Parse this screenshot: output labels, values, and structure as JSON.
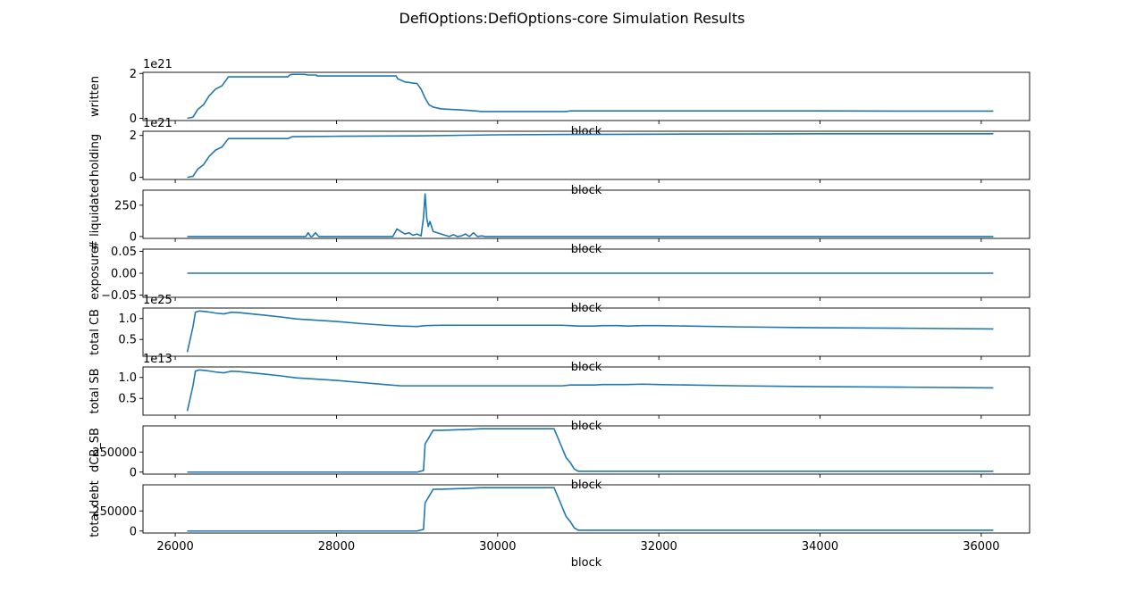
{
  "figure": {
    "title": "DefiOptions:DefiOptions-core Simulation Results"
  },
  "colors": {
    "line": "#1f77b4",
    "axes": "#000000",
    "background": "#ffffff"
  },
  "chart_data": [
    {
      "type": "line",
      "title": "",
      "xlabel": "block",
      "ylabel": "written",
      "offset_text": "1e21",
      "xlim": [
        25600,
        36600
      ],
      "ylim": [
        -0.1,
        2.05
      ],
      "yticks": [
        {
          "v": 0,
          "label": "0"
        },
        {
          "v": 2,
          "label": "2"
        }
      ],
      "series": [
        {
          "x": [
            26150,
            26220,
            26280,
            26350,
            26420,
            26500,
            26580,
            26640,
            26660,
            26700,
            27400,
            27420,
            27450,
            27600,
            27650,
            27750,
            27760,
            28500,
            28600,
            28740,
            28760,
            28800,
            28850,
            28900,
            28950,
            29000,
            29050,
            29100,
            29150,
            29200,
            29300,
            29400,
            29600,
            29750,
            29800,
            30000,
            30300,
            30850,
            30900,
            31500,
            32500,
            34000,
            35000,
            36150
          ],
          "y": [
            0.0,
            0.05,
            0.4,
            0.6,
            1.0,
            1.3,
            1.45,
            1.75,
            1.85,
            1.85,
            1.85,
            1.93,
            1.96,
            1.96,
            1.93,
            1.93,
            1.89,
            1.89,
            1.89,
            1.89,
            1.76,
            1.7,
            1.62,
            1.6,
            1.57,
            1.55,
            1.3,
            0.9,
            0.6,
            0.5,
            0.42,
            0.4,
            0.36,
            0.32,
            0.3,
            0.3,
            0.3,
            0.3,
            0.33,
            0.33,
            0.33,
            0.33,
            0.32,
            0.32
          ]
        }
      ]
    },
    {
      "type": "line",
      "title": "",
      "xlabel": "block",
      "ylabel": "holding",
      "offset_text": "1e21",
      "xlim": [
        25600,
        36600
      ],
      "ylim": [
        -0.1,
        2.2
      ],
      "yticks": [
        {
          "v": 0,
          "label": "0"
        },
        {
          "v": 2,
          "label": "2"
        }
      ],
      "series": [
        {
          "x": [
            26150,
            26220,
            26280,
            26350,
            26420,
            26500,
            26580,
            26640,
            26660,
            26700,
            27400,
            27450,
            28000,
            29000,
            30000,
            31000,
            32000,
            33000,
            34000,
            35000,
            36150
          ],
          "y": [
            0.0,
            0.05,
            0.4,
            0.6,
            1.0,
            1.3,
            1.45,
            1.75,
            1.85,
            1.85,
            1.85,
            1.94,
            1.96,
            1.98,
            2.03,
            2.05,
            2.06,
            2.07,
            2.08,
            2.08,
            2.08
          ]
        }
      ]
    },
    {
      "type": "line",
      "title": "",
      "xlabel": "block",
      "ylabel": "# liquidated",
      "offset_text": "",
      "xlim": [
        25600,
        36600
      ],
      "ylim": [
        -15,
        370
      ],
      "yticks": [
        {
          "v": 0,
          "label": "0"
        },
        {
          "v": 250,
          "label": "250"
        }
      ],
      "series": [
        {
          "x": [
            26150,
            27620,
            27650,
            27680,
            27700,
            27740,
            27780,
            27800,
            28700,
            28750,
            28800,
            28850,
            28900,
            28950,
            29000,
            29050,
            29080,
            29100,
            29120,
            29140,
            29160,
            29180,
            29200,
            29300,
            29400,
            29450,
            29500,
            29550,
            29600,
            29650,
            29700,
            29750,
            29800,
            29850,
            29900,
            30000,
            36150
          ],
          "y": [
            0,
            0,
            30,
            0,
            0,
            30,
            0,
            0,
            0,
            60,
            40,
            20,
            30,
            10,
            20,
            5,
            150,
            340,
            150,
            80,
            120,
            80,
            40,
            20,
            0,
            15,
            0,
            5,
            20,
            0,
            30,
            0,
            5,
            0,
            0,
            0,
            0
          ]
        }
      ]
    },
    {
      "type": "line",
      "title": "",
      "xlabel": "block",
      "ylabel": "exposure",
      "offset_text": "",
      "xlim": [
        25600,
        36600
      ],
      "ylim": [
        -0.055,
        0.055
      ],
      "yticks": [
        {
          "v": -0.05,
          "label": "−0.05"
        },
        {
          "v": 0,
          "label": "0.00"
        },
        {
          "v": 0.05,
          "label": "0.05"
        }
      ],
      "series": [
        {
          "x": [
            26150,
            36150
          ],
          "y": [
            0,
            0
          ]
        }
      ]
    },
    {
      "type": "line",
      "title": "",
      "xlabel": "block",
      "ylabel": "total CB",
      "offset_text": "1e25",
      "xlim": [
        25600,
        36600
      ],
      "ylim": [
        0.1,
        1.25
      ],
      "yticks": [
        {
          "v": 0.5,
          "label": "0.5"
        },
        {
          "v": 1.0,
          "label": "1.0"
        }
      ],
      "series": [
        {
          "x": [
            26150,
            26220,
            26250,
            26300,
            26400,
            26500,
            26600,
            26700,
            26800,
            27000,
            27100,
            27300,
            27500,
            28000,
            28300,
            28600,
            28800,
            29000,
            29100,
            29300,
            30000,
            30800,
            30900,
            31000,
            31200,
            31300,
            31500,
            31600,
            31800,
            32000,
            33000,
            34000,
            35000,
            36150
          ],
          "y": [
            0.2,
            0.8,
            1.15,
            1.18,
            1.16,
            1.13,
            1.11,
            1.15,
            1.14,
            1.1,
            1.08,
            1.04,
            0.99,
            0.93,
            0.88,
            0.84,
            0.82,
            0.81,
            0.83,
            0.84,
            0.84,
            0.84,
            0.83,
            0.82,
            0.82,
            0.83,
            0.83,
            0.82,
            0.83,
            0.83,
            0.8,
            0.78,
            0.77,
            0.75
          ]
        }
      ]
    },
    {
      "type": "line",
      "title": "",
      "xlabel": "block",
      "ylabel": "total SB",
      "offset_text": "1e13",
      "xlim": [
        25600,
        36600
      ],
      "ylim": [
        0.1,
        1.25
      ],
      "yticks": [
        {
          "v": 0.5,
          "label": "0.5"
        },
        {
          "v": 1.0,
          "label": "1.0"
        }
      ],
      "series": [
        {
          "x": [
            26150,
            26220,
            26250,
            26300,
            26400,
            26500,
            26600,
            26700,
            26800,
            27000,
            27100,
            27300,
            27500,
            28000,
            28300,
            28600,
            28800,
            29000,
            29100,
            29300,
            30000,
            30800,
            30900,
            31000,
            31200,
            31300,
            31500,
            31600,
            31800,
            32000,
            33000,
            34000,
            35000,
            36150
          ],
          "y": [
            0.2,
            0.8,
            1.15,
            1.18,
            1.16,
            1.13,
            1.11,
            1.15,
            1.14,
            1.1,
            1.08,
            1.04,
            0.99,
            0.93,
            0.88,
            0.83,
            0.8,
            0.8,
            0.8,
            0.8,
            0.8,
            0.8,
            0.82,
            0.82,
            0.82,
            0.83,
            0.83,
            0.83,
            0.84,
            0.83,
            0.8,
            0.78,
            0.77,
            0.75
          ]
        }
      ]
    },
    {
      "type": "line",
      "title": "",
      "xlabel": "block",
      "ylabel": "dCB_SB",
      "offset_text": "",
      "xlim": [
        25600,
        36600
      ],
      "ylim": [
        -25000,
        575000
      ],
      "yticks": [
        {
          "v": 0,
          "label": "0"
        },
        {
          "v": 250000,
          "label": "250000"
        }
      ],
      "series": [
        {
          "x": [
            26150,
            29000,
            29080,
            29100,
            29130,
            29200,
            29300,
            29600,
            29800,
            30000,
            30700,
            30800,
            30850,
            30900,
            30950,
            31000,
            36150
          ],
          "y": [
            0,
            0,
            20000,
            350000,
            400000,
            520000,
            520000,
            530000,
            540000,
            540000,
            540000,
            300000,
            180000,
            120000,
            40000,
            10000,
            10000
          ]
        }
      ]
    },
    {
      "type": "line",
      "title": "",
      "xlabel": "block",
      "ylabel": "total debt",
      "offset_text": "",
      "xlim": [
        25600,
        36600
      ],
      "ylim": [
        -25000,
        575000
      ],
      "yticks": [
        {
          "v": 0,
          "label": "0"
        },
        {
          "v": 250000,
          "label": "250000"
        }
      ],
      "xticks": [
        {
          "v": 26000,
          "label": "26000"
        },
        {
          "v": 28000,
          "label": "28000"
        },
        {
          "v": 30000,
          "label": "30000"
        },
        {
          "v": 32000,
          "label": "32000"
        },
        {
          "v": 34000,
          "label": "34000"
        },
        {
          "v": 36000,
          "label": "36000"
        }
      ],
      "series": [
        {
          "x": [
            26150,
            29000,
            29080,
            29100,
            29130,
            29200,
            29300,
            29600,
            29800,
            30000,
            30700,
            30800,
            30850,
            30900,
            30950,
            31000,
            36150
          ],
          "y": [
            0,
            0,
            20000,
            350000,
            400000,
            520000,
            520000,
            530000,
            540000,
            540000,
            540000,
            300000,
            180000,
            120000,
            40000,
            10000,
            10000
          ]
        }
      ]
    }
  ]
}
